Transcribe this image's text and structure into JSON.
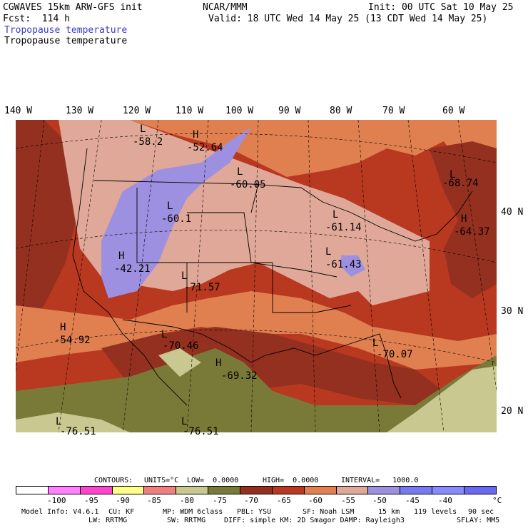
{
  "header": {
    "model_title": "CGWAVES 15km ARW-GFS init",
    "forecast": "Fcst:  114 h",
    "org": "NCAR/MMM",
    "init": "Init: 00 UTC Sat 10 May 25",
    "valid": "Valid: 18 UTC Wed 14 May 25 (13 CDT Wed 14 May 25)",
    "field_title_colored": "Tropopause temperature",
    "field_title": "Tropopause temperature"
  },
  "longitude_labels": [
    "140 W",
    "130 W",
    "120 W",
    "110 W",
    "100 W",
    "90 W",
    "80 W",
    "70 W",
    "60 W"
  ],
  "latitude_labels": [
    "40 N",
    "30 N",
    "20 N"
  ],
  "extrema": [
    {
      "type": "L",
      "value": "-58.2"
    },
    {
      "type": "H",
      "value": "-52.64"
    },
    {
      "type": "L",
      "value": "-60.05"
    },
    {
      "type": "L",
      "value": "-68.74"
    },
    {
      "type": "L",
      "value": "-60.1"
    },
    {
      "type": "H",
      "value": "-64.37"
    },
    {
      "type": "L",
      "value": "-61.14"
    },
    {
      "type": "H",
      "value": "-42.21"
    },
    {
      "type": "L",
      "value": "-61.43"
    },
    {
      "type": "L",
      "value": "-71.57"
    },
    {
      "type": "H",
      "value": "-54.92"
    },
    {
      "type": "L",
      "value": "-70.46"
    },
    {
      "type": "L",
      "value": "-70.07"
    },
    {
      "type": "H",
      "value": "-69.32"
    },
    {
      "type": "L",
      "value": "-76.51"
    },
    {
      "type": "L",
      "value": "-76.51"
    }
  ],
  "contours": {
    "label": "CONTOURS:",
    "units": "UNITS=°C",
    "low": "LOW=  0.0000",
    "high": "HIGH=  0.0000",
    "interval": "INTERVAL=   1000.0"
  },
  "colorbar": {
    "colors": [
      "#ffffff",
      "#ff7fff",
      "#ff44cc",
      "#ffff88",
      "#f08080",
      "#c8c890",
      "#7a7a38",
      "#943020",
      "#b83820",
      "#e08050",
      "#e0a898",
      "#9e90e0",
      "#7878f0",
      "#8888ff",
      "#6868f0"
    ],
    "labels": [
      "-100",
      "-95",
      "-90",
      "-85",
      "-80",
      "-75",
      "-70",
      "-65",
      "-60",
      "-55",
      "-50",
      "-45",
      "-40",
      "°C"
    ]
  },
  "footer": {
    "line1": [
      "Model Info: V4.6.1",
      "CU: KF",
      "MP: WDM 6class",
      "PBL: YSU",
      "SF: Noah LSM",
      "15 km",
      "119 levels",
      "90 sec"
    ],
    "line2": [
      "LW: RRTMG",
      "SW: RRTMG",
      "DIFF: simple KM: 2D Smagor DAMP: Rayleigh3",
      "SFLAY: MM5"
    ]
  },
  "colors": {
    "deep_red": "#943020",
    "red": "#b83820",
    "orange": "#e08050",
    "pink": "#e0a898",
    "lavender": "#9e90e0",
    "olive": "#7a7a38",
    "khaki": "#c8c890",
    "title_blue": "#3a3ad0"
  }
}
